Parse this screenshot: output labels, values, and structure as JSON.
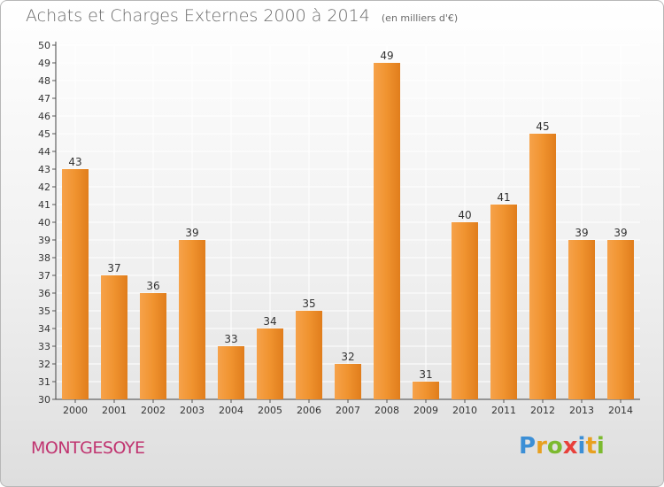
{
  "chart_data": {
    "type": "bar",
    "title": "Achats et Charges Externes 2000 à 2014",
    "subtitle": "(en milliers d'€)",
    "categories": [
      "2000",
      "2001",
      "2002",
      "2003",
      "2004",
      "2005",
      "2006",
      "2007",
      "2008",
      "2009",
      "2010",
      "2011",
      "2012",
      "2013",
      "2014"
    ],
    "values": [
      43,
      37,
      36,
      39,
      33,
      34,
      35,
      32,
      49,
      31,
      40,
      41,
      45,
      39,
      39
    ],
    "ylim": [
      30,
      50
    ],
    "yticks": [
      30,
      31,
      32,
      33,
      34,
      35,
      36,
      37,
      38,
      39,
      40,
      41,
      42,
      43,
      44,
      45,
      46,
      47,
      48,
      49,
      50
    ],
    "grid": true,
    "bar_color": "#f0932f"
  },
  "footer": {
    "town": "MONTGESOYE",
    "logo": "Proxiti"
  },
  "colors": {
    "town": "#c0336f",
    "grid": "#ffffff",
    "axis_text": "#333333"
  }
}
